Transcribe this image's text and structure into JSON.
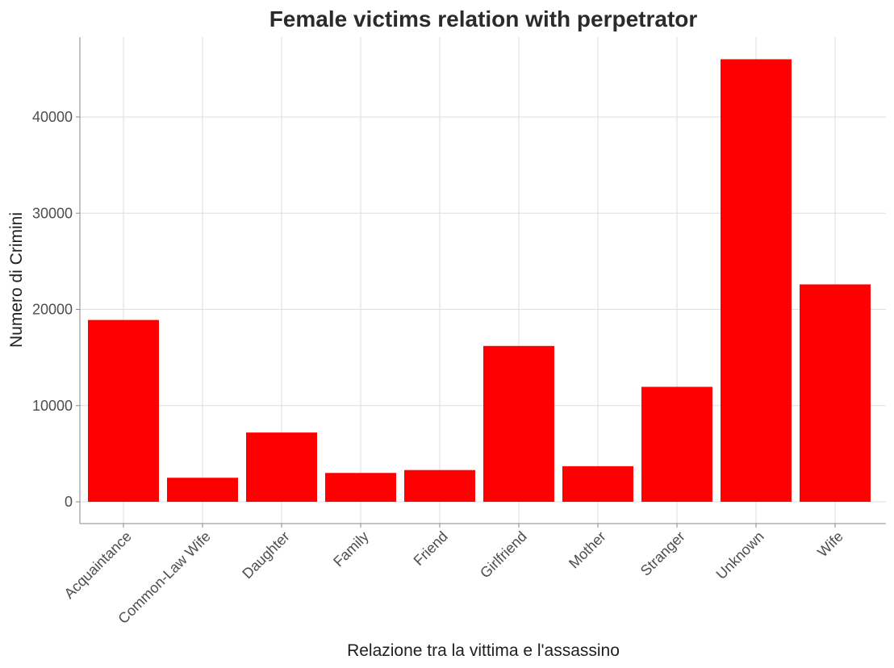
{
  "chart_data": {
    "type": "bar",
    "title": "Female victims relation with perpetrator",
    "xlabel": "Relazione tra la vittima e l'assassino",
    "ylabel": "Numero di Crimini",
    "categories": [
      "Acquaintance",
      "Common-Law Wife",
      "Daughter",
      "Family",
      "Friend",
      "Girlfriend",
      "Mother",
      "Stranger",
      "Unknown",
      "Wife"
    ],
    "values": [
      18900,
      2500,
      7200,
      3000,
      3300,
      16200,
      3700,
      11950,
      46000,
      22600
    ],
    "yticks": [
      0,
      10000,
      20000,
      30000,
      40000
    ],
    "ylim": [
      -2300,
      48400
    ],
    "grid": true,
    "legend": "none",
    "colors": {
      "bar": "#ff0000"
    }
  }
}
